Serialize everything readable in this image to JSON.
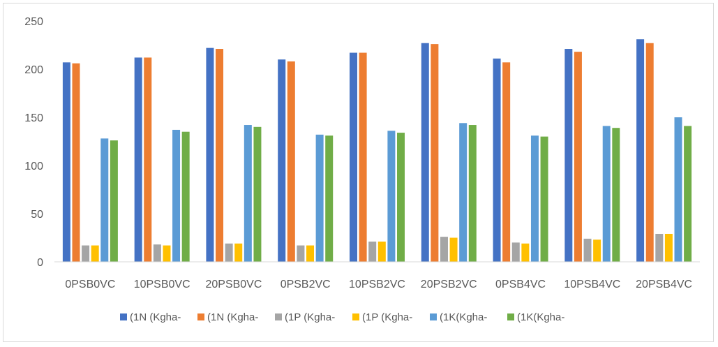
{
  "chart_data": {
    "type": "bar",
    "categories": [
      "0PSB0VC",
      "10PSB0VC",
      "20PSB0VC",
      "0PSB2VC",
      "10PSB2VC",
      "20PSB2VC",
      "0PSB4VC",
      "10PSB4VC",
      "20PSB4VC"
    ],
    "series": [
      {
        "name": "(1N (Kgha-",
        "color": "#4472c4",
        "values": [
          207,
          212,
          222,
          210,
          217,
          227,
          211,
          221,
          231
        ]
      },
      {
        "name": "(1N (Kgha-",
        "color": "#ed7d31",
        "values": [
          206,
          212,
          221,
          208,
          217,
          226,
          207,
          218,
          227
        ]
      },
      {
        "name": "(1P (Kgha-",
        "color": "#a5a5a5",
        "values": [
          17,
          18,
          19,
          17,
          21,
          26,
          20,
          24,
          29
        ]
      },
      {
        "name": "(1P (Kgha-",
        "color": "#ffc000",
        "values": [
          17,
          17,
          19,
          17,
          21,
          25,
          19,
          23,
          29
        ]
      },
      {
        "name": "(1K(Kgha-",
        "color": "#5b9bd5",
        "values": [
          128,
          137,
          142,
          132,
          136,
          144,
          131,
          141,
          150
        ]
      },
      {
        "name": "(1K(Kgha-",
        "color": "#70ad47",
        "values": [
          126,
          135,
          140,
          131,
          134,
          142,
          130,
          139,
          141
        ]
      }
    ],
    "yticks": [
      0,
      50,
      100,
      150,
      200,
      250
    ],
    "ylim": [
      0,
      250
    ],
    "grid": false,
    "legend_position": "bottom"
  }
}
